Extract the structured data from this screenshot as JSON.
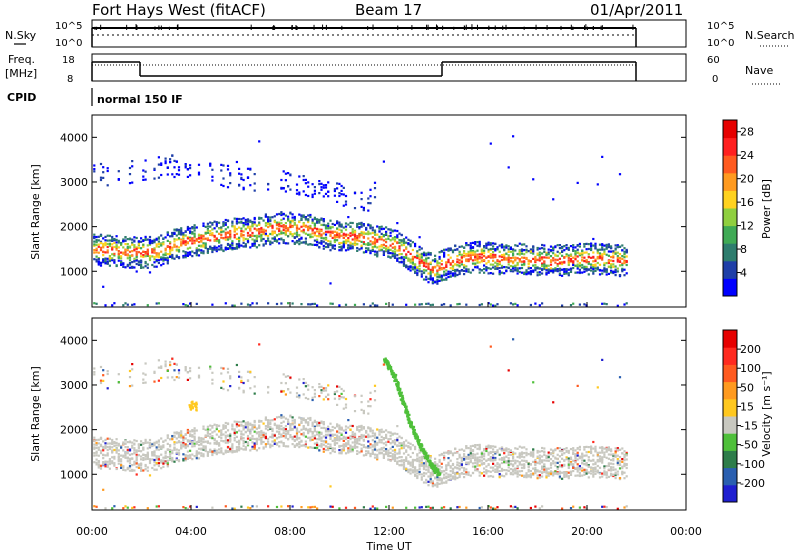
{
  "header": {
    "station": "Fort Hays West (fitACF)",
    "beam": "Beam 17",
    "date": "01/Apr/2011"
  },
  "noise_panel": {
    "left_label": "N.Sky",
    "right_label": "N.Search",
    "left_ticks": [
      "10^5",
      "10^0"
    ],
    "right_ticks": [
      "10^5",
      "10^0"
    ]
  },
  "freq_panel": {
    "left_label_line1": "Freq.",
    "left_label_line2": "[MHz]",
    "right_label": "Nave",
    "left_ticks": [
      "18",
      "8"
    ],
    "right_ticks": [
      "60",
      "0"
    ]
  },
  "cpid": {
    "label": "CPID",
    "value": "normal 150 IF"
  },
  "colors": {
    "power_scale": [
      "#0000ff",
      "#1f3fa8",
      "#2e7d6e",
      "#3faa55",
      "#8fcf3f",
      "#ffd21f",
      "#ff9a1f",
      "#ff5a1f",
      "#ff1f1f",
      "#e60000"
    ],
    "velocity_scale": [
      "#1f1fd0",
      "#2a5fb0",
      "#2e7d4a",
      "#4fc03a",
      "#c8c8c0",
      "#ffc81f",
      "#ff9a1f",
      "#ff5a1f",
      "#ff2a1f",
      "#e60000"
    ],
    "scatter_gray": "#c8c8c0"
  },
  "chart_data": [
    {
      "type": "heatmap",
      "panel": "power",
      "ylabel": "Slant Range [km]",
      "yticks": [
        "1000",
        "2000",
        "3000",
        "4000"
      ],
      "ylim": [
        200,
        4500
      ],
      "xlim_hours": [
        0,
        24
      ],
      "colorbar_label": "Power [dB]",
      "colorbar_ticks": [
        "4",
        "8",
        "12",
        "16",
        "20",
        "24",
        "28"
      ],
      "colorbar_range": [
        0,
        30
      ],
      "main_band_center_km": [
        [
          0.5,
          1500
        ],
        [
          1.5,
          1450
        ],
        [
          2.5,
          1450
        ],
        [
          3.5,
          1650
        ],
        [
          4.5,
          1750
        ],
        [
          5.5,
          1850
        ],
        [
          6.5,
          1900
        ],
        [
          7.5,
          2000
        ],
        [
          8.5,
          1980
        ],
        [
          9.5,
          1850
        ],
        [
          10.5,
          1800
        ],
        [
          11.5,
          1700
        ],
        [
          12.3,
          1600
        ],
        [
          13.0,
          1300
        ],
        [
          13.8,
          1050
        ],
        [
          14.5,
          1250
        ],
        [
          15.5,
          1350
        ],
        [
          16.5,
          1300
        ],
        [
          17.5,
          1300
        ],
        [
          18.5,
          1250
        ],
        [
          19.5,
          1300
        ],
        [
          20.5,
          1300
        ],
        [
          21.5,
          1250
        ]
      ],
      "upper_band_center_km": [
        [
          1.0,
          3200
        ],
        [
          2.0,
          3300
        ],
        [
          3.0,
          3400
        ],
        [
          4.0,
          3300
        ],
        [
          5.0,
          3200
        ],
        [
          6.0,
          3100
        ],
        [
          7.0,
          3050
        ],
        [
          8.0,
          3000
        ],
        [
          9.0,
          2900
        ],
        [
          10.0,
          2750
        ],
        [
          11.0,
          2500
        ],
        [
          11.8,
          3300
        ],
        [
          12.3,
          3000
        ],
        [
          12.8,
          2500
        ]
      ]
    },
    {
      "type": "heatmap",
      "panel": "velocity",
      "ylabel": "Slant Range [km]",
      "yticks": [
        "1000",
        "2000",
        "3000",
        "4000"
      ],
      "ylim": [
        200,
        4500
      ],
      "xlim_hours": [
        0,
        24
      ],
      "xticks": [
        "00:00",
        "04:00",
        "08:00",
        "12:00",
        "16:00",
        "20:00",
        "00:00"
      ],
      "xlabel": "Time UT",
      "colorbar_label": "Velocity [m s⁻¹]",
      "colorbar_ticks": [
        "200",
        "100",
        "50",
        "15",
        "-15",
        "-50",
        "-100",
        "-200"
      ],
      "green_streak_km": [
        [
          11.8,
          3600
        ],
        [
          12.2,
          3200
        ],
        [
          12.5,
          2700
        ],
        [
          12.8,
          2200
        ],
        [
          13.2,
          1700
        ],
        [
          13.6,
          1300
        ],
        [
          14.0,
          1000
        ]
      ]
    }
  ]
}
